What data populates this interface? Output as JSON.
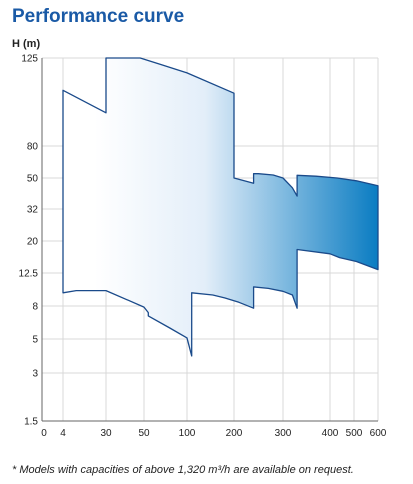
{
  "header": {
    "title": "Performance curve"
  },
  "footnote": "* Models with capacities of above 1,320 m³/h are available on request.",
  "chart_data": {
    "type": "area",
    "title": "Performance curve",
    "ylabel": "H (m)",
    "xlabel": "",
    "x_scale": "nonlinear",
    "y_scale": "nonlinear",
    "x_ticks": [
      {
        "value": 0,
        "label": "0"
      },
      {
        "value": 4,
        "label": "4"
      },
      {
        "value": 30,
        "label": "30"
      },
      {
        "value": 50,
        "label": "50"
      },
      {
        "value": 100,
        "label": "100"
      },
      {
        "value": 200,
        "label": "200"
      },
      {
        "value": 300,
        "label": "300"
      },
      {
        "value": 400,
        "label": "400"
      },
      {
        "value": 500,
        "label": "500"
      },
      {
        "value": 600,
        "label": "600"
      }
    ],
    "y_ticks": [
      {
        "value": 1.5,
        "label": "1.5"
      },
      {
        "value": 3,
        "label": "3"
      },
      {
        "value": 5,
        "label": "5"
      },
      {
        "value": 8,
        "label": "8"
      },
      {
        "value": 12.5,
        "label": "12.5"
      },
      {
        "value": 20,
        "label": "20"
      },
      {
        "value": 32,
        "label": "32"
      },
      {
        "value": 50,
        "label": "50"
      },
      {
        "value": 80,
        "label": "80"
      },
      {
        "value": 125,
        "label": "125"
      }
    ],
    "grid": true,
    "legend": "none",
    "colors": {
      "curve": "#1a4a8a",
      "fill_start": "#ffffff",
      "fill_end": "#0a7cc2",
      "grid": "#d8d8d8",
      "axis": "#666666"
    },
    "outline": [
      [
        4,
        108.5
      ],
      [
        30,
        97
      ],
      [
        30,
        125
      ],
      [
        48,
        125
      ],
      [
        70,
        121.6
      ],
      [
        100,
        117.4
      ],
      [
        200,
        107
      ],
      [
        200,
        50
      ],
      [
        240,
        47
      ],
      [
        240,
        54
      ],
      [
        250,
        54
      ],
      [
        280,
        52.8
      ],
      [
        300,
        50
      ],
      [
        320,
        44.3
      ],
      [
        330,
        39.5
      ],
      [
        330,
        52.5
      ],
      [
        370,
        51.7
      ],
      [
        430,
        50
      ],
      [
        510,
        48.4
      ],
      [
        600,
        45.5
      ],
      [
        600,
        13.3
      ],
      [
        510,
        15.2
      ],
      [
        440,
        16.1
      ],
      [
        400,
        17
      ],
      [
        330,
        18
      ],
      [
        330,
        7.8
      ],
      [
        320,
        9.5
      ],
      [
        300,
        10
      ],
      [
        270,
        10.4
      ],
      [
        240,
        10.6
      ],
      [
        240,
        7.8
      ],
      [
        210,
        8.5
      ],
      [
        180,
        9.1
      ],
      [
        155,
        9.5
      ],
      [
        110,
        9.8
      ],
      [
        110,
        4
      ],
      [
        100,
        5.1
      ],
      [
        80,
        6
      ],
      [
        55,
        7.1
      ],
      [
        55,
        7.4
      ],
      [
        50,
        7.9
      ],
      [
        30,
        10.1
      ],
      [
        12,
        10.1
      ],
      [
        4,
        9.8
      ]
    ]
  }
}
